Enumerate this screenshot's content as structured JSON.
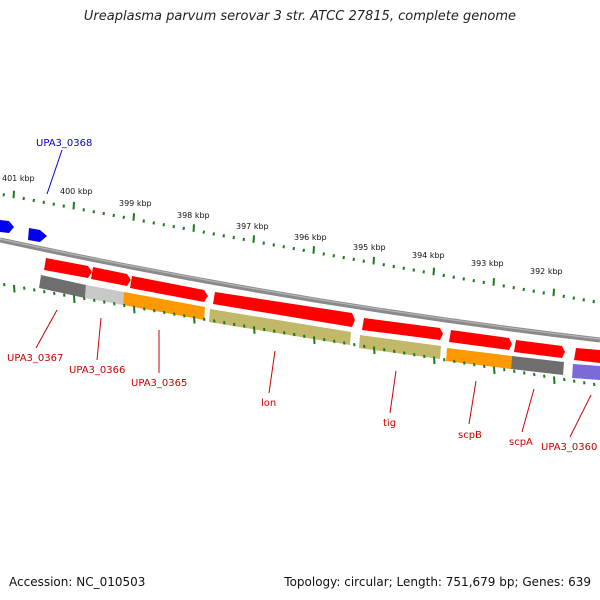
{
  "title": "Ureaplasma parvum serovar 3 str. ATCC 27815, complete genome",
  "footer": {
    "accession": "Accession: NC_010503",
    "summary": "Topology: circular; Length: 751,679 bp; Genes: 639"
  },
  "colors": {
    "red_gene": "#ff0000",
    "orange_gene": "#ff9900",
    "olive_gene": "#c2b86a",
    "gray_gene": "#6e6e6e",
    "light_gray_gene": "#c8c8c8",
    "purple_gene": "#7a6bd8",
    "blue_gene": "#0000ee",
    "backbone": "#8a8a8a",
    "tick": "#1a7a1a",
    "label_red": "#cc0000",
    "label_blue": "#0000cc"
  },
  "kbp_ticks": [
    "401 kbp",
    "400 kbp",
    "399 kbp",
    "398 kbp",
    "397 kbp",
    "396 kbp",
    "395 kbp",
    "394 kbp",
    "393 kbp",
    "392 kbp"
  ],
  "gene_labels": [
    {
      "name": "UPA3_0368",
      "color": "blue"
    },
    {
      "name": "UPA3_0367",
      "color": "red"
    },
    {
      "name": "UPA3_0366",
      "color": "red"
    },
    {
      "name": "UPA3_0365",
      "color": "red"
    },
    {
      "name": "lon",
      "color": "red"
    },
    {
      "name": "tig",
      "color": "red"
    },
    {
      "name": "scpB",
      "color": "red"
    },
    {
      "name": "scpA",
      "color": "red"
    },
    {
      "name": "UPA3_0360",
      "color": "red"
    }
  ]
}
